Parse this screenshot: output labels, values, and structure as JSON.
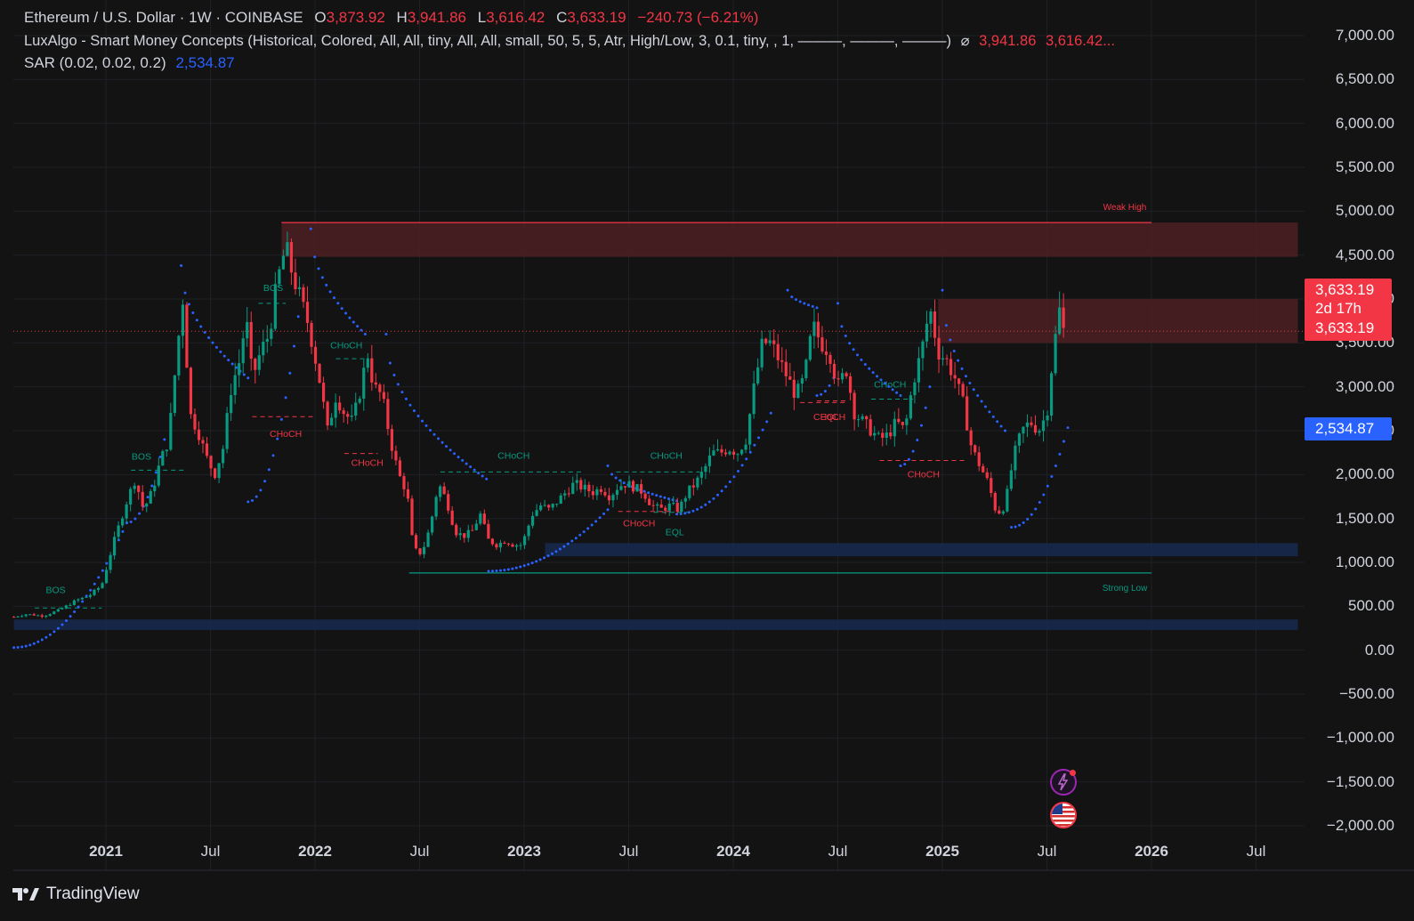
{
  "legend": {
    "symbol": "Ethereum / U.S. Dollar · 1W · COINBASE",
    "o_label": "O",
    "o_value": "3,873.92",
    "h_label": "H",
    "h_value": "3,941.86",
    "l_label": "L",
    "l_value": "3,616.42",
    "c_label": "C",
    "c_value": "3,633.19",
    "change": "−240.73 (−6.21%)",
    "indicator1": "LuxAlgo - Smart Money Concepts (Historical, Colored, All, All, tiny, All, All, small, 50, 5, 5, Atr, High/Low, 3, 0.1, tiny, , 1, ———, ———, ———)",
    "indicator1_glyph": "⌀",
    "indicator1_v1": "3,941.86",
    "indicator1_v2": "3,616.42...",
    "indicator2": "SAR (0.02, 0.02, 0.2)",
    "indicator2_value": "2,534.87"
  },
  "price_tags": {
    "last_price": "3,633.19",
    "countdown": "2d 17h",
    "last_price_2": "3,633.19",
    "sar_value": "2,534.87"
  },
  "footer": {
    "brand": "TradingView"
  },
  "icons": {
    "alert": "lightning-bolt-icon",
    "flag": "us-flag-icon"
  },
  "colors": {
    "up": "#089981",
    "down": "#f23645",
    "sar": "#2962ff",
    "bear_zone": "#4a1f22",
    "bull_zone": "#16294d",
    "background": "#131313"
  },
  "chart_data": {
    "type": "candlestick",
    "title": "Ethereum / U.S. Dollar · 1W · COINBASE",
    "ylim": [
      -2000,
      7000
    ],
    "y_ticks": [
      "7,000.00",
      "6,500.00",
      "6,000.00",
      "5,500.00",
      "5,000.00",
      "4,500.00",
      "4,000.00",
      "3,500.00",
      "3,000.00",
      "2,500.00",
      "2,000.00",
      "1,500.00",
      "1,000.00",
      "500.00",
      "0.00",
      "−500.00",
      "−1,000.00",
      "−1,500.00",
      "−2,000.00"
    ],
    "y_tick_values": [
      7000,
      6500,
      6000,
      5500,
      5000,
      4500,
      4000,
      3500,
      3000,
      2500,
      2000,
      1500,
      1000,
      500,
      0,
      -500,
      -1000,
      -1500,
      -2000
    ],
    "x_ticks": [
      {
        "label": "2021",
        "date": 2021.0,
        "bold": true
      },
      {
        "label": "Jul",
        "date": 2021.5,
        "bold": false
      },
      {
        "label": "2022",
        "date": 2022.0,
        "bold": true
      },
      {
        "label": "Jul",
        "date": 2022.5,
        "bold": false
      },
      {
        "label": "2023",
        "date": 2023.0,
        "bold": true
      },
      {
        "label": "Jul",
        "date": 2023.5,
        "bold": false
      },
      {
        "label": "2024",
        "date": 2024.0,
        "bold": true
      },
      {
        "label": "Jul",
        "date": 2024.5,
        "bold": false
      },
      {
        "label": "2025",
        "date": 2025.0,
        "bold": true
      },
      {
        "label": "Jul",
        "date": 2025.5,
        "bold": false
      },
      {
        "label": "2026",
        "date": 2026.0,
        "bold": true
      },
      {
        "label": "Jul",
        "date": 2026.5,
        "bold": false
      }
    ],
    "close_path": [
      [
        2020.56,
        380
      ],
      [
        2020.62,
        410
      ],
      [
        2020.7,
        390
      ],
      [
        2020.78,
        460
      ],
      [
        2020.86,
        570
      ],
      [
        2020.92,
        620
      ],
      [
        2020.98,
        740
      ],
      [
        2021.04,
        1250
      ],
      [
        2021.1,
        1700
      ],
      [
        2021.14,
        1950
      ],
      [
        2021.18,
        1600
      ],
      [
        2021.22,
        1800
      ],
      [
        2021.26,
        2150
      ],
      [
        2021.3,
        2400
      ],
      [
        2021.34,
        3400
      ],
      [
        2021.37,
        4050
      ],
      [
        2021.4,
        2700
      ],
      [
        2021.44,
        2500
      ],
      [
        2021.48,
        2200
      ],
      [
        2021.52,
        2000
      ],
      [
        2021.56,
        2300
      ],
      [
        2021.6,
        3000
      ],
      [
        2021.64,
        3300
      ],
      [
        2021.67,
        3800
      ],
      [
        2021.7,
        3100
      ],
      [
        2021.74,
        3400
      ],
      [
        2021.78,
        3600
      ],
      [
        2021.82,
        4200
      ],
      [
        2021.86,
        4600
      ],
      [
        2021.89,
        4300
      ],
      [
        2021.93,
        4000
      ],
      [
        2021.97,
        3700
      ],
      [
        2022.02,
        3100
      ],
      [
        2022.06,
        2500
      ],
      [
        2022.1,
        2900
      ],
      [
        2022.14,
        2700
      ],
      [
        2022.18,
        2600
      ],
      [
        2022.22,
        3000
      ],
      [
        2022.25,
        3400
      ],
      [
        2022.28,
        3000
      ],
      [
        2022.32,
        2900
      ],
      [
        2022.36,
        2400
      ],
      [
        2022.4,
        2000
      ],
      [
        2022.44,
        1800
      ],
      [
        2022.47,
        1150
      ],
      [
        2022.51,
        1100
      ],
      [
        2022.55,
        1400
      ],
      [
        2022.59,
        1900
      ],
      [
        2022.63,
        1700
      ],
      [
        2022.67,
        1350
      ],
      [
        2022.71,
        1300
      ],
      [
        2022.75,
        1350
      ],
      [
        2022.79,
        1550
      ],
      [
        2022.83,
        1250
      ],
      [
        2022.87,
        1200
      ],
      [
        2022.91,
        1250
      ],
      [
        2022.95,
        1200
      ],
      [
        2022.99,
        1200
      ],
      [
        2023.04,
        1550
      ],
      [
        2023.08,
        1650
      ],
      [
        2023.12,
        1600
      ],
      [
        2023.16,
        1700
      ],
      [
        2023.2,
        1800
      ],
      [
        2023.24,
        1900
      ],
      [
        2023.28,
        1850
      ],
      [
        2023.33,
        1800
      ],
      [
        2023.37,
        1850
      ],
      [
        2023.41,
        1750
      ],
      [
        2023.45,
        1870
      ],
      [
        2023.49,
        1900
      ],
      [
        2023.53,
        1850
      ],
      [
        2023.57,
        1800
      ],
      [
        2023.61,
        1650
      ],
      [
        2023.65,
        1600
      ],
      [
        2023.7,
        1650
      ],
      [
        2023.74,
        1600
      ],
      [
        2023.78,
        1800
      ],
      [
        2023.82,
        1900
      ],
      [
        2023.86,
        2050
      ],
      [
        2023.9,
        2250
      ],
      [
        2023.94,
        2250
      ],
      [
        2023.98,
        2300
      ],
      [
        2024.02,
        2250
      ],
      [
        2024.06,
        2400
      ],
      [
        2024.1,
        3000
      ],
      [
        2024.14,
        3500
      ],
      [
        2024.18,
        3500
      ],
      [
        2024.22,
        3300
      ],
      [
        2024.26,
        3100
      ],
      [
        2024.3,
        2900
      ],
      [
        2024.34,
        3100
      ],
      [
        2024.38,
        3700
      ],
      [
        2024.42,
        3500
      ],
      [
        2024.46,
        3400
      ],
      [
        2024.5,
        3000
      ],
      [
        2024.54,
        3200
      ],
      [
        2024.58,
        2700
      ],
      [
        2024.62,
        2600
      ],
      [
        2024.66,
        2500
      ],
      [
        2024.7,
        2400
      ],
      [
        2024.74,
        2450
      ],
      [
        2024.78,
        2600
      ],
      [
        2024.82,
        2500
      ],
      [
        2024.86,
        3050
      ],
      [
        2024.9,
        3400
      ],
      [
        2024.94,
        3900
      ],
      [
        2024.98,
        3400
      ],
      [
        2025.02,
        3300
      ],
      [
        2025.06,
        3100
      ],
      [
        2025.1,
        2800
      ],
      [
        2025.14,
        2300
      ],
      [
        2025.18,
        2100
      ],
      [
        2025.22,
        1900
      ],
      [
        2025.26,
        1550
      ],
      [
        2025.3,
        1650
      ],
      [
        2025.34,
        2200
      ],
      [
        2025.38,
        2500
      ],
      [
        2025.42,
        2600
      ],
      [
        2025.46,
        2500
      ],
      [
        2025.5,
        2700
      ],
      [
        2025.53,
        3400
      ],
      [
        2025.56,
        3870
      ],
      [
        2025.58,
        3633
      ]
    ],
    "candle_noise": 0.06,
    "sar_segments": [
      {
        "side": "below",
        "from": [
          2020.56,
          30
        ],
        "to": [
          2021.1,
          1450
        ]
      },
      {
        "side": "below",
        "from": [
          2021.1,
          1450
        ],
        "to": [
          2021.28,
          2400
        ]
      },
      {
        "side": "above",
        "from": [
          2021.36,
          4380
        ],
        "to": [
          2021.68,
          3100
        ]
      },
      {
        "side": "below",
        "from": [
          2021.68,
          1690
        ],
        "to": [
          2021.92,
          3800
        ]
      },
      {
        "side": "above",
        "from": [
          2021.98,
          4800
        ],
        "to": [
          2022.24,
          3600
        ]
      },
      {
        "side": "above",
        "from": [
          2022.34,
          3600
        ],
        "to": [
          2022.82,
          1950
        ]
      },
      {
        "side": "below",
        "from": [
          2022.83,
          900
        ],
        "to": [
          2023.4,
          1600
        ]
      },
      {
        "side": "above",
        "from": [
          2023.4,
          2100
        ],
        "to": [
          2023.73,
          1700
        ]
      },
      {
        "side": "below",
        "from": [
          2023.73,
          1550
        ],
        "to": [
          2024.18,
          2700
        ]
      },
      {
        "side": "above",
        "from": [
          2024.26,
          4100
        ],
        "to": [
          2024.4,
          3900
        ]
      },
      {
        "side": "below",
        "from": [
          2024.4,
          2900
        ],
        "to": [
          2024.48,
          3100
        ]
      },
      {
        "side": "above",
        "from": [
          2024.5,
          3950
        ],
        "to": [
          2024.8,
          2900
        ]
      },
      {
        "side": "below",
        "from": [
          2024.8,
          2100
        ],
        "to": [
          2024.94,
          3000
        ]
      },
      {
        "side": "above",
        "from": [
          2025.0,
          4100
        ],
        "to": [
          2025.3,
          2500
        ]
      },
      {
        "side": "below",
        "from": [
          2025.33,
          1400
        ],
        "to": [
          2025.6,
          2534
        ]
      }
    ],
    "zones": [
      {
        "label": "Weak High",
        "type": "premium",
        "x_from": 2021.84,
        "x_to": 2026.7,
        "y_from": 4480,
        "y_to": 4870,
        "line_to": 2026.0
      },
      {
        "label": "",
        "type": "supply",
        "x_from": 2024.98,
        "x_to": 2026.7,
        "y_from": 3500,
        "y_to": 4000
      },
      {
        "label": "",
        "type": "demand",
        "x_from": 2023.1,
        "x_to": 2026.7,
        "y_from": 1070,
        "y_to": 1220
      },
      {
        "label": "",
        "type": "demand",
        "x_from": 2020.56,
        "x_to": 2026.7,
        "y_from": 230,
        "y_to": 350
      },
      {
        "label": "Strong Low",
        "type": "low-line",
        "x_from": 2022.45,
        "x_to": 2026.0,
        "y": 880
      }
    ],
    "structure_labels": [
      {
        "text": "BOS",
        "color": "up",
        "x": 2020.76,
        "y": 650,
        "line": [
          2020.66,
          2020.98,
          480
        ]
      },
      {
        "text": "BOS",
        "color": "up",
        "x": 2021.17,
        "y": 2170,
        "line": [
          2021.12,
          2021.38,
          2050
        ]
      },
      {
        "text": "BOS",
        "color": "up",
        "x": 2021.8,
        "y": 4090,
        "line": [
          2021.73,
          2021.86,
          3950
        ]
      },
      {
        "text": "CHoCH",
        "color": "down",
        "x": 2021.86,
        "y": 2430,
        "line": [
          2021.7,
          2022.0,
          2660
        ]
      },
      {
        "text": "CHoCH",
        "color": "up",
        "x": 2022.15,
        "y": 3440,
        "line": [
          2022.1,
          2022.25,
          3320
        ]
      },
      {
        "text": "CHoCH",
        "color": "down",
        "x": 2022.25,
        "y": 2100,
        "line": [
          2022.14,
          2022.3,
          2240
        ]
      },
      {
        "text": "CHoCH",
        "color": "up",
        "x": 2022.95,
        "y": 2180,
        "line": [
          2022.6,
          2023.28,
          2030
        ]
      },
      {
        "text": "CHoCH",
        "color": "down",
        "x": 2023.55,
        "y": 1410,
        "line": [
          2023.45,
          2023.72,
          1580
        ]
      },
      {
        "text": "EQL",
        "color": "up",
        "x": 2023.72,
        "y": 1310,
        "line": [
          2023.62,
          2023.8,
          1570
        ]
      },
      {
        "text": "CHoCH",
        "color": "up",
        "x": 2023.68,
        "y": 2180,
        "line": [
          2023.44,
          2023.84,
          2030
        ]
      },
      {
        "text": "CHoCH",
        "color": "down",
        "x": 2024.46,
        "y": 2620,
        "line": [
          2024.32,
          2024.55,
          2820
        ]
      },
      {
        "text": "CHoCH",
        "color": "up",
        "x": 2024.75,
        "y": 2990,
        "line": [
          2024.66,
          2024.86,
          2860
        ]
      },
      {
        "text": "CHoCH",
        "color": "down",
        "x": 2024.91,
        "y": 1970,
        "line": [
          2024.7,
          2025.12,
          2160
        ]
      },
      {
        "text": "EQL",
        "color": "down",
        "x": 2024.46,
        "y": 2620,
        "line": [
          2024.4,
          2024.55,
          2840
        ]
      }
    ],
    "last_price_line": 3633.19
  }
}
